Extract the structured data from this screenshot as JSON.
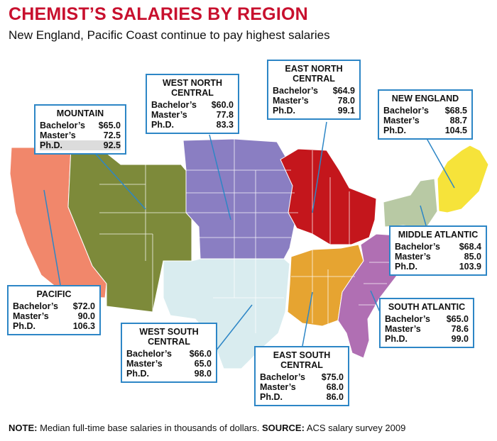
{
  "title": "CHEMIST’S SALARIES BY REGION",
  "subtitle": "New England, Pacific Coast continue to pay highest salaries",
  "row_labels": {
    "bachelors": "Bachelor’s",
    "masters": "Master’s",
    "phd": "Ph.D."
  },
  "regions": {
    "mountain": {
      "name": "MOUNTAIN",
      "bachelors": "$65.0",
      "masters": "72.5",
      "phd": "92.5",
      "color": "#7d8a3a"
    },
    "west_north_central": {
      "name_line1": "WEST NORTH",
      "name_line2": "CENTRAL",
      "bachelors": "$60.0",
      "masters": "77.8",
      "phd": "83.3",
      "color": "#8a7ec2"
    },
    "east_north_central": {
      "name_line1": "EAST NORTH",
      "name_line2": "CENTRAL",
      "bachelors": "$64.9",
      "masters": "78.0",
      "phd": "99.1",
      "color": "#c4161c"
    },
    "new_england": {
      "name": "NEW ENGLAND",
      "bachelors": "$68.5",
      "masters": "88.7",
      "phd": "104.5",
      "color": "#f6e33a"
    },
    "middle_atlantic": {
      "name": "MIDDLE ATLANTIC",
      "bachelors": "$68.4",
      "masters": "85.0",
      "phd": "103.9",
      "color": "#b8c9a4"
    },
    "south_atlantic": {
      "name": "SOUTH ATLANTIC",
      "bachelors": "$65.0",
      "masters": "78.6",
      "phd": "99.0",
      "color": "#b06fb3"
    },
    "east_south_central": {
      "name_line1": "EAST SOUTH",
      "name_line2": "CENTRAL",
      "bachelors": "$75.0",
      "masters": "68.0",
      "phd": "86.0",
      "color": "#e6a431"
    },
    "west_south_central": {
      "name_line1": "WEST SOUTH",
      "name_line2": "CENTRAL",
      "bachelors": "$66.0",
      "masters": "65.0",
      "phd": "98.0",
      "color": "#d9ecef"
    },
    "pacific": {
      "name": "PACIFIC",
      "bachelors": "$72.0",
      "masters": "90.0",
      "phd": "106.3",
      "color": "#f1876b"
    }
  },
  "note": {
    "label": "NOTE:",
    "text": "Median full-time base salaries in thousands of dollars.",
    "source_label": "SOURCE:",
    "source_text": "ACS salary survey 2009"
  }
}
